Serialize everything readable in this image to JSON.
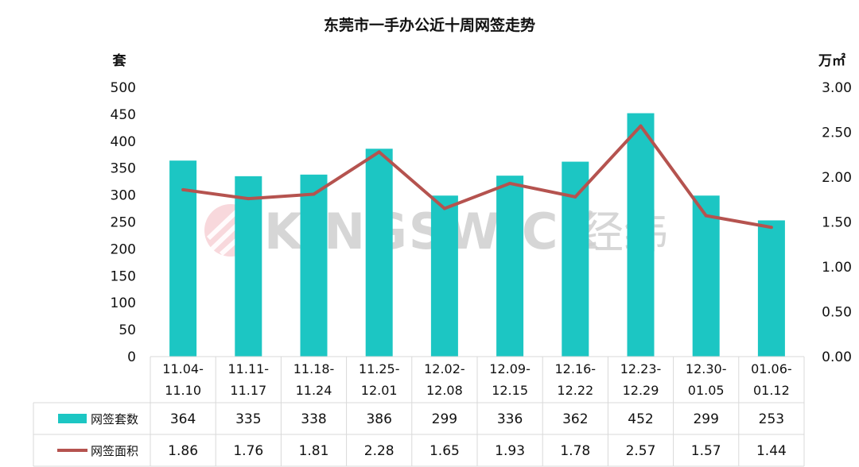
{
  "chart_data": {
    "type": "bar",
    "title": "东莞市一手办公近十周网签走势",
    "y_left_unit": "套",
    "y_right_unit": "万㎡",
    "ylim_left": [
      0,
      500
    ],
    "ylim_right": [
      0,
      3.0
    ],
    "y_left_ticks": [
      "0",
      "50",
      "100",
      "150",
      "200",
      "250",
      "300",
      "350",
      "400",
      "450",
      "500"
    ],
    "y_right_ticks": [
      "0.00",
      "0.50",
      "1.00",
      "1.50",
      "2.00",
      "2.50",
      "3.00"
    ],
    "categories": [
      [
        "11.04-",
        "11.10"
      ],
      [
        "11.11-",
        "11.17"
      ],
      [
        "11.18-",
        "11.24"
      ],
      [
        "11.25-",
        "12.01"
      ],
      [
        "12.02-",
        "12.08"
      ],
      [
        "12.09-",
        "12.15"
      ],
      [
        "12.16-",
        "12.22"
      ],
      [
        "12.23-",
        "12.29"
      ],
      [
        "12.30-",
        "01.05"
      ],
      [
        "01.06-",
        "01.12"
      ]
    ],
    "series": [
      {
        "name": "网签套数",
        "type": "bar",
        "axis": "left",
        "color": "#1cc6c3",
        "values": [
          364,
          335,
          338,
          386,
          299,
          336,
          362,
          452,
          299,
          253
        ]
      },
      {
        "name": "网签面积",
        "type": "line",
        "axis": "right",
        "color": "#b5534f",
        "values": [
          1.86,
          1.76,
          1.81,
          2.28,
          1.65,
          1.93,
          1.78,
          2.57,
          1.57,
          1.44
        ]
      }
    ],
    "table_values": [
      [
        "364",
        "335",
        "338",
        "386",
        "299",
        "336",
        "362",
        "452",
        "299",
        "253"
      ],
      [
        "1.86",
        "1.76",
        "1.81",
        "2.28",
        "1.65",
        "1.93",
        "1.78",
        "2.57",
        "1.57",
        "1.44"
      ]
    ],
    "legend": "table-left",
    "grid": false
  },
  "watermark": {
    "text": "KINGSWICK",
    "cn": "经纬",
    "color": "#e46a78"
  }
}
